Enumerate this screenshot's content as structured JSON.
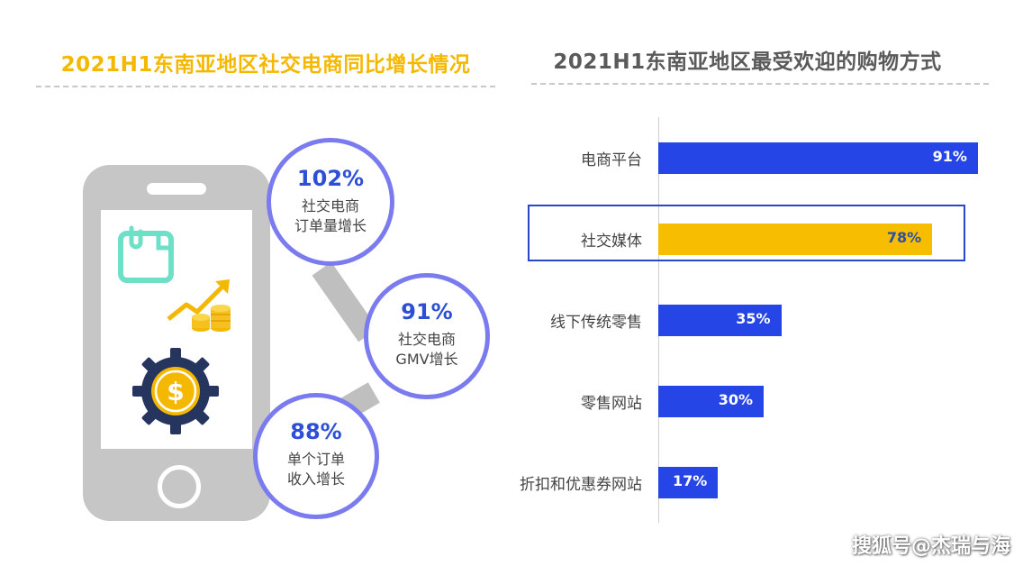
{
  "left_panel": {
    "title": "2021H1东南亚地区社交电商同比增长情况",
    "stats": [
      {
        "value": "102%",
        "label_line1": "社交电商",
        "label_line2": "订单量增长"
      },
      {
        "value": "91%",
        "label_line1": "社交电商",
        "label_line2": "GMV增长"
      },
      {
        "value": "88%",
        "label_line1": "单个订单",
        "label_line2": "收入增长"
      }
    ],
    "icons": [
      "phone-icon",
      "clipboard-icon",
      "growth-chart-icon",
      "coins-icon",
      "dollar-gear-icon"
    ]
  },
  "chart_data": {
    "type": "bar",
    "orientation": "horizontal",
    "title": "2021H1东南亚地区最受欢迎的购物方式",
    "categories": [
      "电商平台",
      "社交媒体",
      "线下传统零售",
      "零售网站",
      "折扣和优惠券网站"
    ],
    "values": [
      91,
      78,
      35,
      30,
      17
    ],
    "value_labels": [
      "91%",
      "78%",
      "35%",
      "30%",
      "17%"
    ],
    "highlight_index": 1,
    "xlim": [
      0,
      100
    ],
    "colors": {
      "default": "#2545e6",
      "highlight": "#f7bd00",
      "highlight_border": "#2b47c9",
      "default_label": "#ffffff",
      "highlight_label": "#2c4fa8"
    }
  },
  "watermark": "搜狐号@杰瑞与海",
  "colors": {
    "accent_yellow": "#f5b800",
    "circle_border": "#7b7bf0",
    "stat_blue": "#2c4fd6"
  }
}
